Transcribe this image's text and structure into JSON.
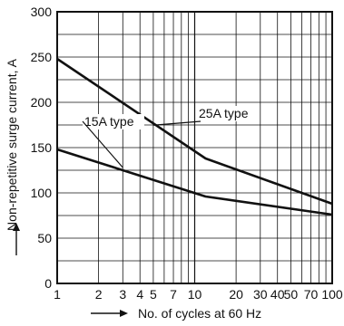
{
  "chart_data": {
    "type": "line",
    "title": "",
    "xlabel": "No. of cycles at 60 Hz",
    "ylabel": "Non-repetitive surge current, A",
    "x_scale": "log",
    "xlim": [
      1,
      100
    ],
    "ylim": [
      0,
      300
    ],
    "grid": true,
    "legend": "none",
    "x_ticks": [
      {
        "value": 1,
        "label": "1"
      },
      {
        "value": 2,
        "label": "2"
      },
      {
        "value": 3,
        "label": "3"
      },
      {
        "value": 4,
        "label": "4"
      },
      {
        "value": 5,
        "label": "5"
      },
      {
        "value": 7,
        "label": "7"
      },
      {
        "value": 10,
        "label": "10"
      },
      {
        "value": 20,
        "label": "20"
      },
      {
        "value": 30,
        "label": "30"
      },
      {
        "value": 40,
        "label": "40"
      },
      {
        "value": 50,
        "label": "50"
      },
      {
        "value": 70,
        "label": "70"
      },
      {
        "value": 100,
        "label": "100"
      }
    ],
    "y_ticks": [
      0,
      50,
      100,
      150,
      200,
      250,
      300
    ],
    "series": [
      {
        "name": "25A type",
        "x": [
          1,
          12,
          100
        ],
        "y": [
          248,
          138,
          88
        ]
      },
      {
        "name": "15A type",
        "x": [
          1,
          12,
          100
        ],
        "y": [
          148,
          96,
          76
        ]
      }
    ],
    "annotations": [
      {
        "text": "25A type",
        "target_series": "25A type"
      },
      {
        "text": "15A type",
        "target_series": "15A type"
      }
    ]
  }
}
